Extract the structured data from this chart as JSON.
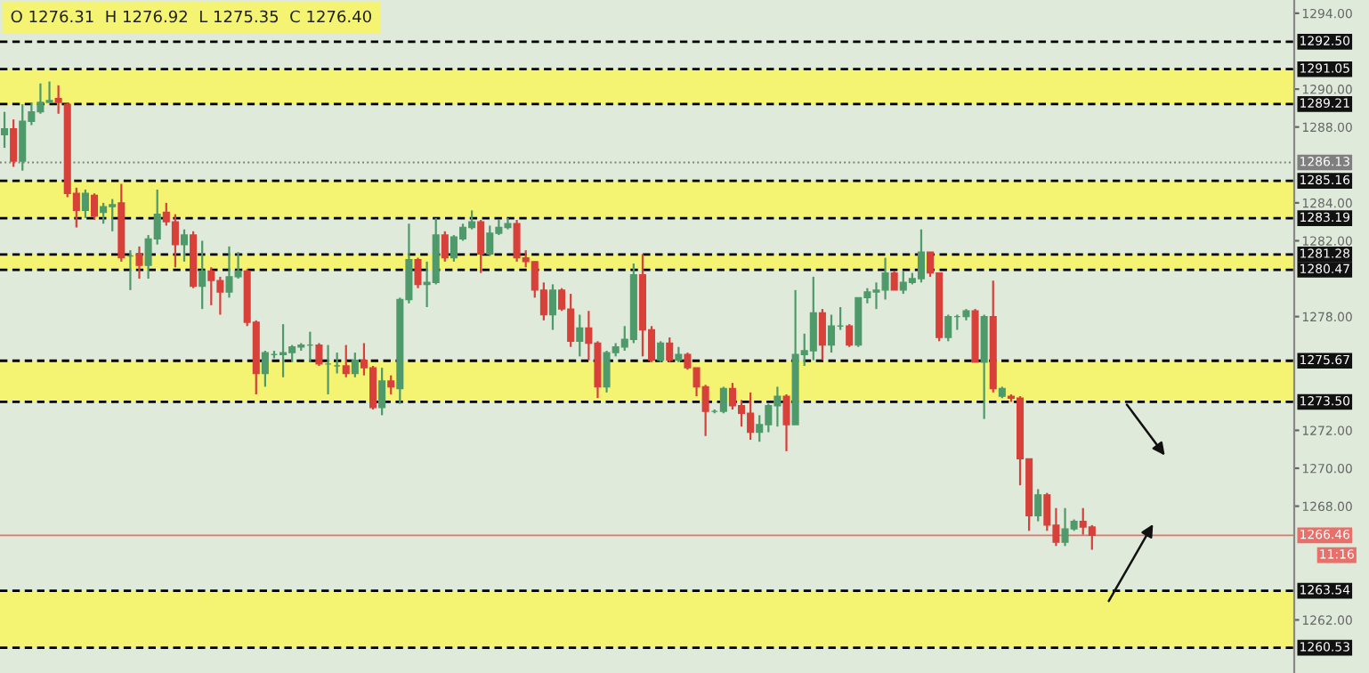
{
  "chart_data": {
    "type": "candlestick",
    "categories": [
      null,
      null,
      null,
      null,
      null,
      null,
      null,
      null,
      null,
      null,
      null,
      null,
      null,
      null,
      null,
      null,
      null,
      null,
      null,
      null,
      null,
      null,
      null,
      null,
      null,
      null,
      null,
      null,
      null,
      null,
      null,
      null,
      null,
      null,
      null,
      null,
      null,
      null,
      null,
      null,
      null,
      null,
      null,
      null,
      null,
      null,
      null,
      null,
      null,
      null,
      null,
      null,
      null,
      null,
      null,
      null,
      null,
      null,
      null,
      null,
      null,
      null,
      null,
      null,
      null,
      null,
      null,
      null,
      null,
      null,
      null,
      null,
      null,
      null,
      null,
      null,
      null,
      null,
      null,
      null,
      null,
      null,
      null,
      null,
      null,
      null,
      null,
      null,
      null,
      null,
      null,
      null,
      null,
      null,
      null,
      null,
      null,
      null,
      null,
      null,
      null,
      null,
      null,
      null,
      null,
      null,
      null,
      null,
      null,
      null,
      null,
      null,
      null,
      null,
      null,
      null,
      null,
      null,
      null,
      null,
      null,
      null,
      null,
      null,
      null,
      null,
      null,
      null,
      null,
      null,
      null,
      null,
      null,
      null,
      null,
      null,
      null,
      null,
      null,
      null,
      null,
      null,
      null,
      null
    ],
    "ohlc": [
      [
        1287.6,
        1288.8,
        1286.9,
        1287.9
      ],
      [
        1287.9,
        1288.4,
        1285.9,
        1286.2
      ],
      [
        1286.2,
        1289.2,
        1285.7,
        1288.3
      ],
      [
        1288.3,
        1289.3,
        1288.1,
        1288.8
      ],
      [
        1288.8,
        1290.3,
        1288.7,
        1289.3
      ],
      [
        1289.3,
        1290.4,
        1289.3,
        1289.4
      ],
      [
        1289.5,
        1290.2,
        1288.7,
        1289.3
      ],
      [
        1289.2,
        1289.3,
        1284.3,
        1284.5
      ],
      [
        1284.5,
        1284.8,
        1282.7,
        1283.6
      ],
      [
        1283.6,
        1284.7,
        1283.2,
        1284.5
      ],
      [
        1284.4,
        1284.5,
        1283.1,
        1283.3
      ],
      [
        1283.5,
        1284.0,
        1282.9,
        1283.8
      ],
      [
        1283.8,
        1284.2,
        1282.5,
        1283.9
      ],
      [
        1284.0,
        1285.0,
        1280.9,
        1281.1
      ],
      [
        1281.2,
        1281.5,
        1279.4,
        1281.2
      ],
      [
        1281.3,
        1281.7,
        1280.0,
        1280.7
      ],
      [
        1280.7,
        1282.3,
        1280.0,
        1282.1
      ],
      [
        1282.1,
        1284.7,
        1281.8,
        1283.4
      ],
      [
        1283.5,
        1284.0,
        1282.8,
        1283.0
      ],
      [
        1283.0,
        1283.4,
        1280.6,
        1281.8
      ],
      [
        1281.8,
        1282.6,
        1280.9,
        1282.3
      ],
      [
        1282.3,
        1282.5,
        1279.5,
        1279.6
      ],
      [
        1279.6,
        1282.0,
        1278.4,
        1280.4
      ],
      [
        1280.4,
        1280.6,
        1278.6,
        1279.9
      ],
      [
        1279.9,
        1280.1,
        1278.1,
        1279.3
      ],
      [
        1279.3,
        1281.7,
        1279.0,
        1280.1
      ],
      [
        1280.1,
        1281.4,
        1280.0,
        1280.4
      ],
      [
        1280.4,
        1280.5,
        1277.5,
        1277.7
      ],
      [
        1277.7,
        1277.8,
        1273.9,
        1275.0
      ],
      [
        1275.0,
        1276.2,
        1274.3,
        1276.1
      ],
      [
        1276.0,
        1276.2,
        1275.8,
        1276.0
      ],
      [
        1276.0,
        1277.6,
        1274.8,
        1276.1
      ],
      [
        1276.1,
        1276.5,
        1275.6,
        1276.4
      ],
      [
        1276.4,
        1276.6,
        1276.2,
        1276.5
      ],
      [
        1276.5,
        1277.2,
        1275.6,
        1276.5
      ],
      [
        1276.5,
        1276.6,
        1275.4,
        1275.5
      ],
      [
        1275.5,
        1276.5,
        1273.9,
        1275.5
      ],
      [
        1275.4,
        1276.1,
        1275.0,
        1275.4
      ],
      [
        1275.4,
        1276.5,
        1274.8,
        1275.0
      ],
      [
        1275.0,
        1276.1,
        1274.8,
        1275.7
      ],
      [
        1275.7,
        1276.6,
        1274.9,
        1275.3
      ],
      [
        1275.3,
        1275.4,
        1273.1,
        1273.2
      ],
      [
        1273.2,
        1275.3,
        1272.8,
        1274.6
      ],
      [
        1274.6,
        1274.9,
        1273.9,
        1274.3
      ],
      [
        1274.2,
        1279.0,
        1273.4,
        1278.9
      ],
      [
        1278.9,
        1282.9,
        1278.7,
        1281.0
      ],
      [
        1281.0,
        1281.1,
        1279.5,
        1279.7
      ],
      [
        1279.7,
        1280.9,
        1278.5,
        1279.8
      ],
      [
        1279.8,
        1283.2,
        1279.7,
        1282.3
      ],
      [
        1282.3,
        1282.5,
        1280.9,
        1281.1
      ],
      [
        1281.1,
        1282.3,
        1280.9,
        1282.2
      ],
      [
        1282.1,
        1282.9,
        1282.0,
        1282.7
      ],
      [
        1282.7,
        1283.6,
        1282.6,
        1283.0
      ],
      [
        1283.0,
        1283.1,
        1280.3,
        1281.3
      ],
      [
        1281.3,
        1282.8,
        1281.2,
        1282.4
      ],
      [
        1282.4,
        1283.1,
        1282.3,
        1282.7
      ],
      [
        1282.7,
        1283.2,
        1282.6,
        1282.9
      ],
      [
        1282.9,
        1283.1,
        1280.9,
        1281.1
      ],
      [
        1281.1,
        1281.5,
        1280.6,
        1280.9
      ],
      [
        1280.9,
        1280.9,
        1279.0,
        1279.4
      ],
      [
        1279.4,
        1279.8,
        1277.8,
        1278.1
      ],
      [
        1278.1,
        1279.7,
        1277.3,
        1279.4
      ],
      [
        1279.4,
        1279.5,
        1278.3,
        1278.4
      ],
      [
        1278.4,
        1279.2,
        1276.4,
        1276.7
      ],
      [
        1276.7,
        1278.1,
        1275.9,
        1277.4
      ],
      [
        1277.4,
        1278.3,
        1275.7,
        1276.6
      ],
      [
        1276.6,
        1276.7,
        1273.7,
        1274.3
      ],
      [
        1274.3,
        1276.2,
        1274.0,
        1276.1
      ],
      [
        1276.1,
        1276.6,
        1275.9,
        1276.4
      ],
      [
        1276.4,
        1277.5,
        1276.2,
        1276.8
      ],
      [
        1276.8,
        1280.8,
        1276.6,
        1280.2
      ],
      [
        1280.2,
        1281.3,
        1275.9,
        1277.3
      ],
      [
        1277.3,
        1277.5,
        1275.6,
        1275.7
      ],
      [
        1275.7,
        1276.7,
        1275.6,
        1276.6
      ],
      [
        1276.6,
        1276.9,
        1275.6,
        1275.7
      ],
      [
        1275.7,
        1276.4,
        1275.6,
        1276.0
      ],
      [
        1276.0,
        1276.1,
        1275.2,
        1275.3
      ],
      [
        1275.3,
        1275.3,
        1273.8,
        1274.3
      ],
      [
        1274.3,
        1274.4,
        1271.7,
        1273.0
      ],
      [
        1273.0,
        1273.1,
        1272.9,
        1273.0
      ],
      [
        1273.0,
        1274.3,
        1272.9,
        1274.2
      ],
      [
        1274.2,
        1274.5,
        1273.1,
        1273.3
      ],
      [
        1273.3,
        1273.6,
        1272.2,
        1272.9
      ],
      [
        1272.9,
        1274.0,
        1271.5,
        1271.9
      ],
      [
        1271.9,
        1272.8,
        1271.4,
        1272.3
      ],
      [
        1272.3,
        1273.4,
        1271.9,
        1273.3
      ],
      [
        1273.3,
        1274.3,
        1272.2,
        1273.8
      ],
      [
        1273.8,
        1273.9,
        1270.9,
        1272.3
      ],
      [
        1272.3,
        1279.4,
        1272.3,
        1276.0
      ],
      [
        1276.0,
        1277.1,
        1275.4,
        1276.2
      ],
      [
        1276.2,
        1280.1,
        1275.7,
        1278.2
      ],
      [
        1278.2,
        1278.4,
        1275.7,
        1276.5
      ],
      [
        1276.5,
        1278.1,
        1276.1,
        1277.5
      ],
      [
        1277.5,
        1278.5,
        1277.3,
        1277.5
      ],
      [
        1277.5,
        1277.6,
        1276.4,
        1276.5
      ],
      [
        1276.5,
        1279.0,
        1276.4,
        1279.0
      ],
      [
        1279.0,
        1279.5,
        1278.7,
        1279.3
      ],
      [
        1279.3,
        1279.8,
        1278.4,
        1279.4
      ],
      [
        1279.4,
        1281.1,
        1278.9,
        1280.3
      ],
      [
        1280.3,
        1280.4,
        1279.4,
        1279.4
      ],
      [
        1279.4,
        1280.4,
        1279.2,
        1279.8
      ],
      [
        1279.8,
        1280.3,
        1279.7,
        1280.0
      ],
      [
        1280.0,
        1282.6,
        1279.8,
        1281.4
      ],
      [
        1281.4,
        1281.4,
        1280.1,
        1280.3
      ],
      [
        1280.3,
        1280.3,
        1276.7,
        1276.9
      ],
      [
        1276.9,
        1278.1,
        1276.7,
        1278.0
      ],
      [
        1278.0,
        1278.1,
        1277.3,
        1278.0
      ],
      [
        1278.0,
        1278.4,
        1277.8,
        1278.3
      ],
      [
        1278.3,
        1278.4,
        1275.6,
        1275.6
      ],
      [
        1275.6,
        1278.1,
        1272.6,
        1278.0
      ],
      [
        1278.0,
        1279.9,
        1274.0,
        1274.2
      ],
      [
        1273.8,
        1274.3,
        1273.7,
        1274.2
      ],
      [
        1273.8,
        1273.9,
        1273.5,
        1273.7
      ],
      [
        1273.7,
        1273.8,
        1269.1,
        1270.5
      ],
      [
        1270.5,
        1270.5,
        1266.7,
        1267.5
      ],
      [
        1267.5,
        1268.9,
        1267.2,
        1268.6
      ],
      [
        1268.6,
        1268.7,
        1266.7,
        1267.0
      ],
      [
        1267.0,
        1267.9,
        1265.9,
        1266.1
      ],
      [
        1266.1,
        1267.9,
        1265.9,
        1266.8
      ],
      [
        1266.8,
        1267.3,
        1266.7,
        1267.2
      ],
      [
        1267.2,
        1267.9,
        1266.5,
        1266.9
      ],
      [
        1266.9,
        1267.0,
        1265.7,
        1266.46
      ],
      null,
      null,
      null,
      null,
      null,
      null,
      null,
      null,
      null,
      null,
      null,
      null,
      null,
      null,
      null,
      null,
      null,
      null,
      null,
      null,
      null,
      null
    ],
    "colors": [
      "#4f9a6a",
      "#d8403a",
      "#4f9a6a",
      "#4f9a6a",
      "#4f9a6a",
      "#4f9a6a",
      "#d8403a",
      "#d8403a",
      "#d8403a",
      "#4f9a6a",
      "#d8403a",
      "#4f9a6a",
      "#4f9a6a",
      "#d8403a",
      "#4f9a6a",
      "#d8403a",
      "#4f9a6a",
      "#4f9a6a",
      "#d8403a",
      "#d8403a",
      "#4f9a6a",
      "#d8403a",
      "#4f9a6a",
      "#d8403a",
      "#d8403a",
      "#4f9a6a",
      "#4f9a6a",
      "#d8403a",
      "#d8403a",
      "#4f9a6a",
      "#4f9a6a",
      "#4f9a6a",
      "#4f9a6a",
      "#4f9a6a",
      "#4f9a6a",
      "#d8403a",
      "#4f9a6a",
      "#4f9a6a",
      "#d8403a",
      "#4f9a6a",
      "#d8403a",
      "#d8403a",
      "#4f9a6a",
      "#d8403a",
      "#4f9a6a",
      "#4f9a6a",
      "#d8403a",
      "#4f9a6a",
      "#4f9a6a",
      "#d8403a",
      "#4f9a6a",
      "#4f9a6a",
      "#4f9a6a",
      "#d8403a",
      "#4f9a6a",
      "#4f9a6a",
      "#4f9a6a",
      "#d8403a",
      "#d8403a",
      "#d8403a",
      "#d8403a",
      "#4f9a6a",
      "#d8403a",
      "#d8403a",
      "#4f9a6a",
      "#d8403a",
      "#d8403a",
      "#4f9a6a",
      "#4f9a6a",
      "#4f9a6a",
      "#4f9a6a",
      "#d8403a",
      "#d8403a",
      "#4f9a6a",
      "#d8403a",
      "#4f9a6a",
      "#d8403a",
      "#d8403a",
      "#d8403a",
      "#4f9a6a",
      "#4f9a6a",
      "#d8403a",
      "#d8403a",
      "#d8403a",
      "#4f9a6a",
      "#4f9a6a",
      "#4f9a6a",
      "#d8403a",
      "#4f9a6a",
      "#4f9a6a",
      "#4f9a6a",
      "#d8403a",
      "#4f9a6a",
      "#4f9a6a",
      "#d8403a",
      "#4f9a6a",
      "#4f9a6a",
      "#4f9a6a",
      "#4f9a6a",
      "#d8403a",
      "#4f9a6a",
      "#4f9a6a",
      "#4f9a6a",
      "#d8403a",
      "#d8403a",
      "#4f9a6a",
      "#4f9a6a",
      "#4f9a6a",
      "#d8403a",
      "#4f9a6a",
      "#d8403a",
      "#4f9a6a",
      "#d8403a",
      "#d8403a",
      "#d8403a",
      "#4f9a6a",
      "#d8403a",
      "#d8403a",
      "#4f9a6a",
      "#4f9a6a",
      "#d8403a",
      "#d8403a",
      null,
      null,
      null,
      null,
      null,
      null,
      null,
      null,
      null,
      null,
      null,
      null,
      null,
      null,
      null,
      null,
      null,
      null,
      null,
      null,
      null,
      null
    ],
    "ylim": [
      1259.2,
      1294.7
    ],
    "yticks": [
      {
        "value": 1294,
        "label": "1294.00"
      },
      {
        "value": 1290,
        "label": "1290.00"
      },
      {
        "value": 1288,
        "label": "1288.00"
      },
      {
        "value": 1284,
        "label": "1284.00"
      },
      {
        "value": 1282,
        "label": "1282.00"
      },
      {
        "value": 1278,
        "label": "1278.00"
      },
      {
        "value": 1272,
        "label": "1272.00"
      },
      {
        "value": 1270,
        "label": "1270.00"
      },
      {
        "value": 1268,
        "label": "1268.00"
      },
      {
        "value": 1262,
        "label": "1262.00"
      }
    ],
    "ref_lines": [
      {
        "axis": "y",
        "value": 1292.5,
        "label": "1292.50",
        "color": "#000000",
        "line_style": "dashed"
      },
      {
        "axis": "y",
        "value": 1291.05,
        "label": "1291.05",
        "color": "#000000",
        "line_style": "dashed"
      },
      {
        "axis": "y",
        "value": 1289.21,
        "label": "1289.21",
        "color": "#000000",
        "line_style": "dashed"
      },
      {
        "axis": "y",
        "value": 1286.13,
        "label": "1286.13",
        "color": "#7f7f7f",
        "line_style": "dotted"
      },
      {
        "axis": "y",
        "value": 1285.16,
        "label": "1285.16",
        "color": "#000000",
        "line_style": "dashed"
      },
      {
        "axis": "y",
        "value": 1283.19,
        "label": "1283.19",
        "color": "#000000",
        "line_style": "dashed"
      },
      {
        "axis": "y",
        "value": 1281.28,
        "label": "1281.28",
        "color": "#000000",
        "line_style": "dashed"
      },
      {
        "axis": "y",
        "value": 1280.47,
        "label": "1280.47",
        "color": "#000000",
        "line_style": "dashed"
      },
      {
        "axis": "y",
        "value": 1275.67,
        "label": "1275.67",
        "color": "#000000",
        "line_style": "dashed"
      },
      {
        "axis": "y",
        "value": 1273.5,
        "label": "1273.50",
        "color": "#000000",
        "line_style": "dashed"
      },
      {
        "axis": "y",
        "value": 1266.46,
        "label": "1266.46",
        "color": "#e8706a",
        "line_style": "solid"
      },
      {
        "axis": "y",
        "value": 1263.54,
        "label": "1263.54",
        "color": "#000000",
        "line_style": "dashed"
      },
      {
        "axis": "y",
        "value": 1260.53,
        "label": "1260.53",
        "color": "#000000",
        "line_style": "dashed"
      }
    ],
    "bands": [
      {
        "axis": "y",
        "from": 1289.21,
        "to": 1291.05,
        "color": "#f4f472"
      },
      {
        "axis": "y",
        "from": 1283.19,
        "to": 1285.16,
        "color": "#f4f472"
      },
      {
        "axis": "y",
        "from": 1280.47,
        "to": 1281.28,
        "color": "#f4f472"
      },
      {
        "axis": "y",
        "from": 1273.5,
        "to": 1275.67,
        "color": "#f4f472"
      },
      {
        "axis": "y",
        "from": 1260.53,
        "to": 1263.54,
        "color": "#f4f472"
      }
    ],
    "annotations": [
      "O 1276.31  H 1276.92  L 1275.35  C 1276.40",
      "11:16"
    ]
  }
}
